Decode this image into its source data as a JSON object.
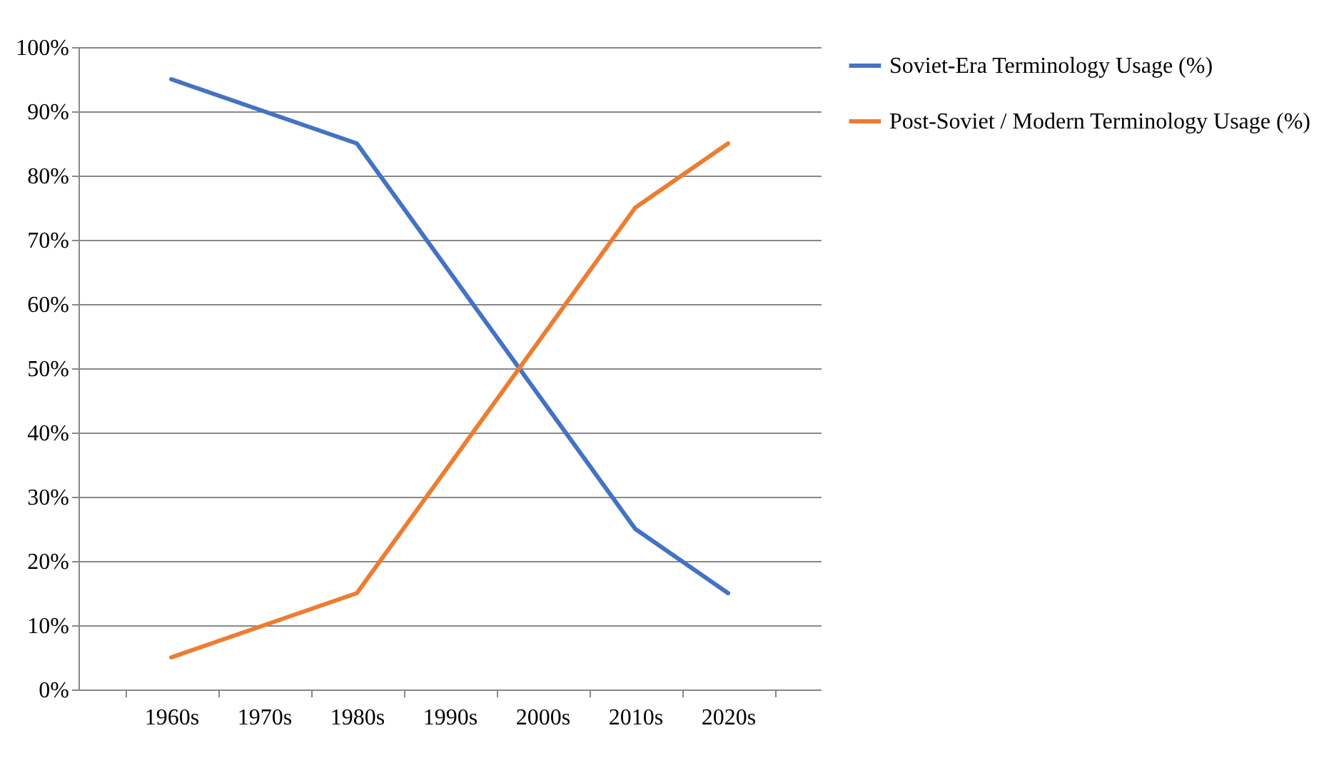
{
  "chart_data": {
    "type": "line",
    "categories": [
      "1960s",
      "1970s",
      "1980s",
      "1990s",
      "2000s",
      "2010s",
      "2020s"
    ],
    "series": [
      {
        "name": "Soviet-Era Terminology Usage (%)",
        "color": "#4472c4",
        "values": [
          95,
          90,
          85,
          65,
          45,
          25,
          15
        ]
      },
      {
        "name": "Post-Soviet / Modern Terminology Usage (%)",
        "color": "#ed7d31",
        "values": [
          5,
          10,
          15,
          35,
          55,
          75,
          85
        ]
      }
    ],
    "ylim": [
      0,
      100
    ],
    "yticks": [
      {
        "value": 0,
        "label": "0%"
      },
      {
        "value": 10,
        "label": "10%"
      },
      {
        "value": 20,
        "label": "20%"
      },
      {
        "value": 30,
        "label": "30%"
      },
      {
        "value": 40,
        "label": "40%"
      },
      {
        "value": 50,
        "label": "50%"
      },
      {
        "value": 60,
        "label": "60%"
      },
      {
        "value": 70,
        "label": "70%"
      },
      {
        "value": 80,
        "label": "80%"
      },
      {
        "value": 90,
        "label": "90%"
      },
      {
        "value": 100,
        "label": "100%"
      }
    ],
    "grid": "y",
    "legend": "right",
    "marker": "none",
    "line_style": "solid"
  }
}
